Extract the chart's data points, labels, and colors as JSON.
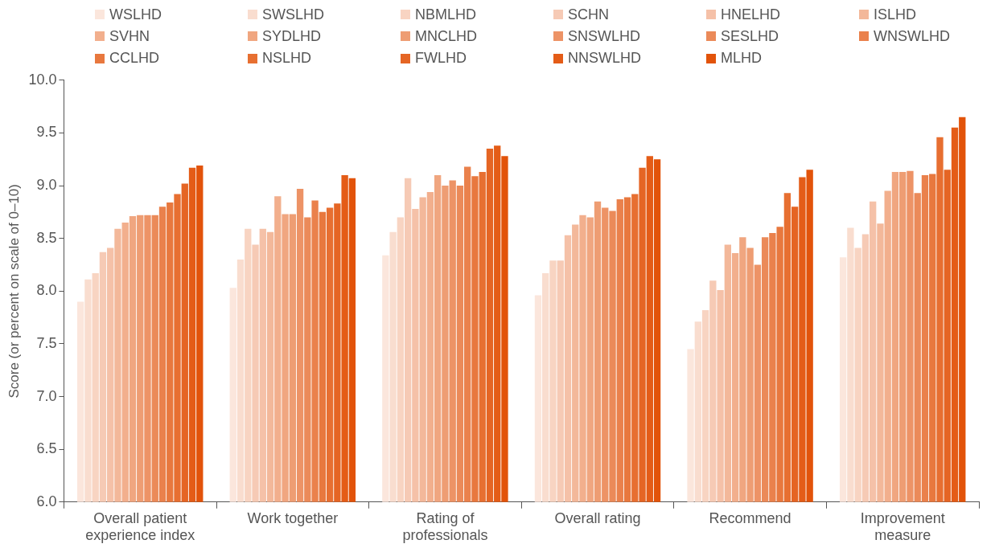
{
  "chart_data": {
    "type": "bar",
    "ylabel": "Score (or percent on scale of 0–10)",
    "categories": [
      "Overall patient experience index",
      "Work together",
      "Rating of professionals",
      "Overall rating",
      "Recommend",
      "Improvement measure"
    ],
    "ylim": [
      6,
      10
    ],
    "yticks": [
      {
        "value": 6,
        "label": "6.0"
      },
      6.5,
      {
        "value": 7,
        "label": "7.0"
      },
      7.5,
      {
        "value": 8,
        "label": "8.0"
      },
      8.5,
      {
        "value": 9,
        "label": "9.0"
      },
      9.5,
      {
        "value": 10,
        "label": "10.0"
      }
    ],
    "grid": false,
    "legend": "top",
    "series": [
      {
        "name": "WSLHD",
        "color": "#fbe6dc",
        "values": [
          7.9,
          8.03,
          8.34,
          7.96,
          7.45,
          8.32
        ]
      },
      {
        "name": "SWSLHD",
        "color": "#f9ddcf",
        "values": [
          8.11,
          8.3,
          8.56,
          8.17,
          7.71,
          8.6
        ]
      },
      {
        "name": "NBMLHD",
        "color": "#f8d4c2",
        "values": [
          8.17,
          8.59,
          8.7,
          8.29,
          7.82,
          8.41
        ]
      },
      {
        "name": "SCHN",
        "color": "#f6cab5",
        "values": [
          8.37,
          8.44,
          9.07,
          8.29,
          8.1,
          8.54
        ]
      },
      {
        "name": "HNELHD",
        "color": "#f5c1a8",
        "values": [
          8.41,
          8.59,
          8.78,
          8.53,
          8.01,
          8.85
        ]
      },
      {
        "name": "ISLHD",
        "color": "#f3b89a",
        "values": [
          8.59,
          8.56,
          8.89,
          8.63,
          8.44,
          8.64
        ]
      },
      {
        "name": "SVHN",
        "color": "#f2af8d",
        "values": [
          8.65,
          8.9,
          8.94,
          8.72,
          8.36,
          8.95
        ]
      },
      {
        "name": "SYDLHD",
        "color": "#f0a680",
        "values": [
          8.71,
          8.73,
          9.1,
          8.7,
          8.51,
          9.13
        ]
      },
      {
        "name": "MNCLHD",
        "color": "#ee9d73",
        "values": [
          8.72,
          8.73,
          9.0,
          8.85,
          8.41,
          9.13
        ]
      },
      {
        "name": "SNSWLHD",
        "color": "#ed9366",
        "values": [
          8.72,
          8.97,
          9.05,
          8.79,
          8.25,
          9.14
        ]
      },
      {
        "name": "SESLHD",
        "color": "#eb8a59",
        "values": [
          8.72,
          8.7,
          9.0,
          8.76,
          8.51,
          8.93
        ]
      },
      {
        "name": "WNSWLHD",
        "color": "#ea814c",
        "values": [
          8.8,
          8.86,
          9.18,
          8.87,
          8.55,
          9.1
        ]
      },
      {
        "name": "CCLHD",
        "color": "#e8783e",
        "values": [
          8.84,
          8.75,
          9.09,
          8.89,
          8.61,
          9.11
        ]
      },
      {
        "name": "NSLHD",
        "color": "#e76f31",
        "values": [
          8.92,
          8.79,
          9.13,
          8.92,
          8.93,
          9.46
        ]
      },
      {
        "name": "FWLHD",
        "color": "#e56524",
        "values": [
          9.02,
          8.83,
          9.35,
          9.17,
          8.8,
          9.15
        ]
      },
      {
        "name": "NNSWLHD",
        "color": "#e45c17",
        "values": [
          9.17,
          9.1,
          9.38,
          9.28,
          9.08,
          9.55
        ]
      },
      {
        "name": "MLHD",
        "color": "#e2530a",
        "values": [
          9.19,
          9.07,
          9.28,
          9.25,
          9.15,
          9.65
        ]
      }
    ]
  }
}
